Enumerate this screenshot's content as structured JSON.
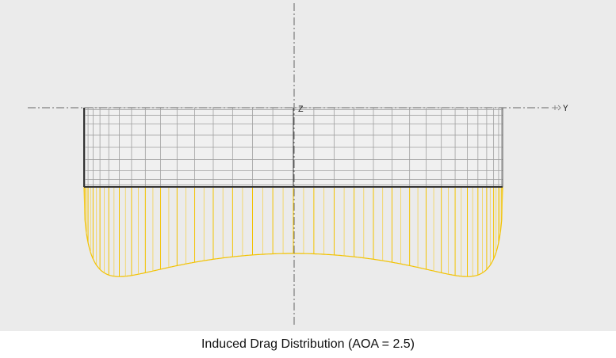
{
  "plot": {
    "axis_labels": {
      "z": "Z",
      "y": "Y"
    }
  },
  "caption": "Induced Drag Distribution (AOA = 2.5)"
}
